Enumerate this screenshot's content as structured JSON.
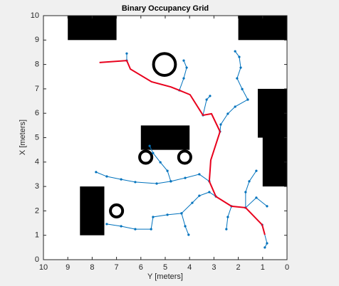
{
  "chart_data": {
    "type": "occupancy",
    "title": "Binary Occupancy Grid",
    "xlabel": "Y [meters]",
    "ylabel": "X [meters]",
    "xlim": [
      10,
      0
    ],
    "ylim": [
      0,
      10
    ],
    "xticks": [
      0,
      1,
      2,
      3,
      4,
      5,
      6,
      7,
      8,
      9,
      10
    ],
    "yticks": [
      0,
      1,
      2,
      3,
      4,
      5,
      6,
      7,
      8,
      9,
      10
    ],
    "obstacle_color": "#000000",
    "obstacles": [
      {
        "x": [
          9,
          7
        ],
        "y": [
          9,
          10
        ]
      },
      {
        "x": [
          2,
          0
        ],
        "y": [
          9,
          10
        ]
      },
      {
        "x": [
          1.2,
          0
        ],
        "y": [
          5,
          7
        ]
      },
      {
        "x": [
          1,
          0
        ],
        "y": [
          3,
          5
        ]
      },
      {
        "x": [
          6,
          4
        ],
        "y": [
          4.5,
          5.5
        ]
      },
      {
        "x": [
          8.5,
          7.5
        ],
        "y": [
          1,
          3
        ]
      }
    ],
    "rings": [
      {
        "cx": 5.03,
        "cy": 8.0,
        "r": 0.45
      },
      {
        "cx": 5.8,
        "cy": 4.2,
        "r": 0.25
      },
      {
        "cx": 4.2,
        "cy": 4.2,
        "r": 0.25
      },
      {
        "cx": 7.0,
        "cy": 2.0,
        "r": 0.25
      }
    ],
    "tree_color": "#0072bd",
    "tree": [
      {
        "x": [
          2.13,
          1.96,
          1.9,
          2.05,
          1.84,
          1.61
        ],
        "y": [
          8.54,
          8.31,
          7.87,
          7.43,
          6.99,
          6.56
        ]
      },
      {
        "x": [
          1.61,
          2.13,
          2.43,
          2.72,
          2.75
        ],
        "y": [
          6.56,
          6.27,
          5.98,
          5.54,
          5.25
        ]
      },
      {
        "x": [
          6.58,
          6.58
        ],
        "y": [
          8.45,
          8.16
        ]
      },
      {
        "x": [
          4.42,
          4.24,
          4.12,
          4.24
        ],
        "y": [
          6.94,
          7.43,
          7.87,
          8.16
        ]
      },
      {
        "x": [
          3.45,
          3.3,
          3.16
        ],
        "y": [
          5.92,
          6.56,
          6.71
        ]
      },
      {
        "x": [
          7.84,
          7.4,
          6.81,
          6.23,
          5.35,
          4.77,
          4.18,
          3.6,
          3.19
        ],
        "y": [
          3.59,
          3.41,
          3.29,
          3.18,
          3.12,
          3.21,
          3.35,
          3.5,
          3.21
        ]
      },
      {
        "x": [
          4.77,
          4.91,
          5.2,
          5.5,
          5.64
        ],
        "y": [
          3.21,
          3.64,
          3.99,
          4.37,
          4.66
        ]
      },
      {
        "x": [
          7.4,
          6.81,
          6.23,
          5.58,
          5.5,
          4.91,
          4.33,
          3.89,
          3.6,
          3.19,
          2.92
        ],
        "y": [
          1.46,
          1.37,
          1.25,
          1.25,
          1.75,
          1.84,
          1.9,
          2.33,
          2.62,
          2.77,
          2.59
        ]
      },
      {
        "x": [
          4.33,
          4.18,
          4.04
        ],
        "y": [
          1.9,
          1.37,
          1.02
        ]
      },
      {
        "x": [
          1.7,
          1.7,
          1.55,
          1.26
        ],
        "y": [
          2.13,
          2.77,
          3.21,
          3.64
        ]
      },
      {
        "x": [
          1.7,
          1.26,
          0.82
        ],
        "y": [
          2.13,
          2.54,
          2.19
        ]
      },
      {
        "x": [
          1.02,
          0.82,
          0.91
        ],
        "y": [
          1.43,
          0.67,
          0.5
        ]
      },
      {
        "x": [
          2.28,
          2.43,
          2.49
        ],
        "y": [
          2.19,
          1.75,
          1.25
        ]
      }
    ],
    "path_color": "#e8001c",
    "path": {
      "x": [
        7.7,
        6.58,
        6.43,
        5.56,
        4.77,
        4.42,
        3.98,
        3.45,
        3.1,
        2.75,
        3.13,
        3.19,
        2.92,
        2.28,
        1.7,
        1.02,
        0.91
      ],
      "y": [
        8.08,
        8.16,
        7.81,
        7.29,
        7.08,
        6.94,
        6.76,
        5.92,
        5.98,
        5.25,
        4.08,
        3.21,
        2.59,
        2.19,
        2.13,
        1.43,
        1.02
      ]
    }
  }
}
